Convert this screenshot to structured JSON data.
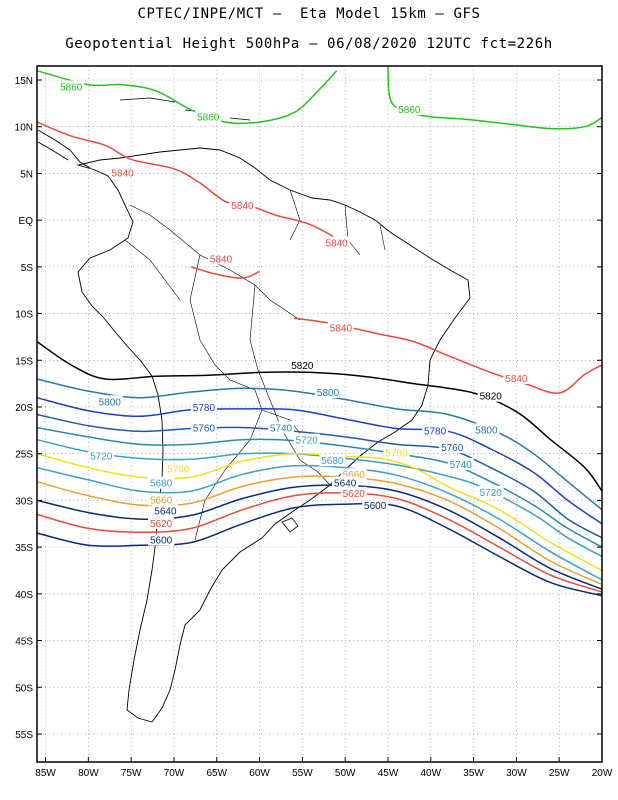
{
  "header": {
    "line1": "CPTEC/INPE/MCT –  Eta Model 15km – GFS",
    "line2": "Geopotential Height 500hPa – 06/08/2020 12UTC fct=226h"
  },
  "map": {
    "lon_range": [
      -86,
      -20
    ],
    "lat_range": [
      -58,
      16.5
    ],
    "lat_ticks": [
      "15N",
      "10N",
      "5N",
      "EQ",
      "5S",
      "10S",
      "15S",
      "20S",
      "25S",
      "30S",
      "35S",
      "40S",
      "45S",
      "50S",
      "55S"
    ],
    "lat_tick_values": [
      15,
      10,
      5,
      0,
      -5,
      -10,
      -15,
      -20,
      -25,
      -30,
      -35,
      -40,
      -45,
      -50,
      -55
    ],
    "lon_ticks": [
      "85W",
      "80W",
      "75W",
      "70W",
      "65W",
      "60W",
      "55W",
      "50W",
      "45W",
      "40W",
      "35W",
      "30W",
      "25W",
      "20W"
    ],
    "lon_tick_values": [
      -85,
      -80,
      -75,
      -70,
      -65,
      -60,
      -55,
      -50,
      -45,
      -40,
      -35,
      -30,
      -25,
      -20
    ],
    "grid": true
  },
  "contours": [
    {
      "level": "5860",
      "color": "#22c41c",
      "points": [
        [
          -86,
          16
        ],
        [
          -80,
          14.5
        ],
        [
          -76,
          14.5
        ],
        [
          -72,
          13.8
        ],
        [
          -68,
          11.8
        ],
        [
          -64,
          10.5
        ],
        [
          -60,
          10.5
        ],
        [
          -56,
          11.5
        ],
        [
          -53,
          14
        ],
        [
          -51,
          16
        ]
      ],
      "labels": [
        [
          -82,
          14.2
        ],
        [
          -66,
          11
        ]
      ]
    },
    {
      "level": "5860",
      "color": "#22c41c",
      "points": [
        [
          -45,
          16.5
        ],
        [
          -44.5,
          12.5
        ],
        [
          -41,
          11.2
        ],
        [
          -36,
          10.8
        ],
        [
          -31,
          10.3
        ],
        [
          -26,
          9.8
        ],
        [
          -22,
          10
        ],
        [
          -20,
          11
        ]
      ],
      "labels": [
        [
          -42.5,
          11.8
        ]
      ]
    },
    {
      "level": "5840",
      "color": "#e84a3c",
      "points": [
        [
          -86,
          10.5
        ],
        [
          -82,
          9
        ],
        [
          -78,
          8
        ],
        [
          -75,
          6.5
        ],
        [
          -70,
          5.5
        ],
        [
          -67,
          4
        ],
        [
          -64,
          2
        ],
        [
          -61,
          1.5
        ],
        [
          -58,
          0.5
        ],
        [
          -54,
          -0.5
        ],
        [
          -50,
          -2.5
        ]
      ],
      "labels": [
        [
          -76,
          5
        ],
        [
          -62,
          1.5
        ],
        [
          -51,
          -2.5
        ]
      ]
    },
    {
      "level": "5840",
      "color": "#e84a3c",
      "points": [
        [
          -68,
          -5
        ],
        [
          -65,
          -5.8
        ],
        [
          -62,
          -6.2
        ],
        [
          -60,
          -5.5
        ]
      ],
      "labels": [
        [
          -64.5,
          -4.2
        ]
      ]
    },
    {
      "level": "5840",
      "color": "#e84a3c",
      "points": [
        [
          -56,
          -10.5
        ],
        [
          -52,
          -11
        ],
        [
          -46,
          -12.2
        ],
        [
          -42,
          -13
        ],
        [
          -38,
          -14.5
        ],
        [
          -33,
          -16.3
        ],
        [
          -29,
          -17.5
        ],
        [
          -25,
          -18.5
        ],
        [
          -22,
          -16.5
        ],
        [
          -20,
          -15.5
        ]
      ],
      "labels": [
        [
          -50.5,
          -11.6
        ],
        [
          -30,
          -17
        ]
      ]
    },
    {
      "level": "5820",
      "color": "#000000",
      "points": [
        [
          -86,
          -13
        ],
        [
          -82,
          -15.5
        ],
        [
          -78,
          -17
        ],
        [
          -72,
          -16.7
        ],
        [
          -66,
          -16.6
        ],
        [
          -60,
          -16.3
        ],
        [
          -54,
          -16.3
        ],
        [
          -48,
          -16.7
        ],
        [
          -42,
          -17.5
        ],
        [
          -35,
          -18.5
        ],
        [
          -30,
          -20.5
        ],
        [
          -26,
          -23.5
        ],
        [
          -22,
          -26.5
        ],
        [
          -20,
          -29
        ]
      ],
      "labels": [
        [
          -55,
          -15.6
        ],
        [
          -33,
          -18.9
        ]
      ]
    },
    {
      "level": "5800",
      "color": "#2878a8",
      "points": [
        [
          -86,
          -17
        ],
        [
          -80,
          -18.3
        ],
        [
          -74,
          -19
        ],
        [
          -68,
          -18.4
        ],
        [
          -62,
          -18
        ],
        [
          -56,
          -18.3
        ],
        [
          -50,
          -19.2
        ],
        [
          -44,
          -20.2
        ],
        [
          -38,
          -20.8
        ],
        [
          -32,
          -22.8
        ],
        [
          -28,
          -25
        ],
        [
          -24,
          -28
        ],
        [
          -20,
          -31
        ]
      ],
      "labels": [
        [
          -77.5,
          -19.5
        ],
        [
          -52,
          -18.5
        ],
        [
          -33.5,
          -22.5
        ]
      ]
    },
    {
      "level": "5780",
      "color": "#1f3ec8",
      "points": [
        [
          -86,
          -19
        ],
        [
          -80,
          -20.4
        ],
        [
          -74,
          -21
        ],
        [
          -68,
          -20.3
        ],
        [
          -62,
          -20.2
        ],
        [
          -56,
          -20.3
        ],
        [
          -50,
          -21.3
        ],
        [
          -44,
          -22.3
        ],
        [
          -38,
          -22.6
        ],
        [
          -33,
          -24.5
        ],
        [
          -28,
          -27
        ],
        [
          -24,
          -30
        ],
        [
          -20,
          -32.5
        ]
      ],
      "labels": [
        [
          -66.5,
          -20.1
        ],
        [
          -39.5,
          -22.6
        ]
      ]
    },
    {
      "level": "5760",
      "color": "#1f58b0",
      "points": [
        [
          -86,
          -20.8
        ],
        [
          -80,
          -22
        ],
        [
          -74,
          -22.6
        ],
        [
          -68,
          -22.3
        ],
        [
          -62,
          -22.2
        ],
        [
          -56,
          -22.6
        ],
        [
          -50,
          -23.2
        ],
        [
          -44,
          -24
        ],
        [
          -38,
          -24.5
        ],
        [
          -33,
          -26.5
        ],
        [
          -28,
          -29
        ],
        [
          -24,
          -32
        ],
        [
          -20,
          -34
        ]
      ],
      "labels": [
        [
          -66.5,
          -22.3
        ],
        [
          -37.5,
          -24.4
        ]
      ]
    },
    {
      "level": "5740",
      "color": "#2a8ab0",
      "points": [
        [
          -86,
          -22.2
        ],
        [
          -80,
          -23.2
        ],
        [
          -74,
          -24
        ],
        [
          -68,
          -24
        ],
        [
          -62,
          -23.5
        ],
        [
          -56,
          -23.6
        ],
        [
          -50,
          -24.2
        ],
        [
          -44,
          -25
        ],
        [
          -38,
          -26
        ],
        [
          -33,
          -28
        ],
        [
          -28,
          -30.5
        ],
        [
          -24,
          -33
        ],
        [
          -20,
          -35
        ]
      ],
      "labels": [
        [
          -57.5,
          -22.3
        ],
        [
          -36.5,
          -26.2
        ]
      ]
    },
    {
      "level": "5720",
      "color": "#3aa0c8",
      "points": [
        [
          -86,
          -23.5
        ],
        [
          -80,
          -24.8
        ],
        [
          -74,
          -25.5
        ],
        [
          -68,
          -25.6
        ],
        [
          -62,
          -25
        ],
        [
          -56,
          -25
        ],
        [
          -50,
          -25.5
        ],
        [
          -44,
          -26.2
        ],
        [
          -38,
          -27.4
        ],
        [
          -34,
          -28.6
        ],
        [
          -28,
          -31.5
        ],
        [
          -24,
          -34
        ],
        [
          -20,
          -36
        ]
      ],
      "labels": [
        [
          -78.5,
          -25.3
        ],
        [
          -54.5,
          -23.6
        ],
        [
          -33,
          -29.2
        ]
      ]
    },
    {
      "level": "5700",
      "color": "#f0e020",
      "points": [
        [
          -86,
          -25
        ],
        [
          -80,
          -26.5
        ],
        [
          -74,
          -27.5
        ],
        [
          -68,
          -27.5
        ],
        [
          -62,
          -25.8
        ],
        [
          -56,
          -25
        ],
        [
          -50,
          -25.3
        ],
        [
          -46,
          -25.5
        ],
        [
          -42,
          -26.5
        ],
        [
          -38,
          -28.5
        ],
        [
          -32,
          -31
        ],
        [
          -26,
          -34.5
        ],
        [
          -20,
          -37.5
        ]
      ],
      "labels": [
        [
          -69.5,
          -26.7
        ],
        [
          -44,
          -25
        ]
      ]
    },
    {
      "level": "5680",
      "color": "#3aa0c8",
      "points": [
        [
          -86,
          -26.5
        ],
        [
          -80,
          -27.8
        ],
        [
          -74,
          -29
        ],
        [
          -68,
          -29
        ],
        [
          -62,
          -27.2
        ],
        [
          -56,
          -26.3
        ],
        [
          -50,
          -26.5
        ],
        [
          -44,
          -27.3
        ],
        [
          -38,
          -29.2
        ],
        [
          -32,
          -32
        ],
        [
          -26,
          -35.5
        ],
        [
          -20,
          -38.5
        ]
      ],
      "labels": [
        [
          -71.5,
          -28.2
        ],
        [
          -51.5,
          -25.8
        ]
      ]
    },
    {
      "level": "5660",
      "color": "#e8a030",
      "points": [
        [
          -86,
          -28
        ],
        [
          -80,
          -29.5
        ],
        [
          -74,
          -30.5
        ],
        [
          -68,
          -30.3
        ],
        [
          -62,
          -28.5
        ],
        [
          -56,
          -27.5
        ],
        [
          -50,
          -27.5
        ],
        [
          -44,
          -28.2
        ],
        [
          -38,
          -30
        ],
        [
          -32,
          -33
        ],
        [
          -26,
          -36.5
        ],
        [
          -20,
          -39
        ]
      ],
      "labels": [
        [
          -71.5,
          -30
        ],
        [
          -49,
          -27.3
        ]
      ]
    },
    {
      "level": "5640",
      "color": "#0a2a7a",
      "points": [
        [
          -86,
          -30
        ],
        [
          -80,
          -31.3
        ],
        [
          -74,
          -32
        ],
        [
          -68,
          -31.6
        ],
        [
          -62,
          -29.8
        ],
        [
          -56,
          -28.6
        ],
        [
          -50,
          -28.4
        ],
        [
          -44,
          -29
        ],
        [
          -38,
          -31
        ],
        [
          -32,
          -34
        ],
        [
          -26,
          -37.3
        ],
        [
          -20,
          -39.5
        ]
      ],
      "labels": [
        [
          -71,
          -31.2
        ],
        [
          -50,
          -28.2
        ]
      ]
    },
    {
      "level": "5620",
      "color": "#e84a3c",
      "points": [
        [
          -86,
          -31.5
        ],
        [
          -80,
          -33
        ],
        [
          -74,
          -33.4
        ],
        [
          -68,
          -33
        ],
        [
          -62,
          -31
        ],
        [
          -56,
          -29.5
        ],
        [
          -50,
          -29.2
        ],
        [
          -44,
          -29.8
        ],
        [
          -38,
          -32
        ],
        [
          -32,
          -35
        ],
        [
          -26,
          -38
        ],
        [
          -20,
          -39.8
        ]
      ],
      "labels": [
        [
          -71.5,
          -32.5
        ],
        [
          -49,
          -29.3
        ]
      ]
    },
    {
      "level": "5600",
      "color": "#0a2a7a",
      "points": [
        [
          -86,
          -33.5
        ],
        [
          -80,
          -34.8
        ],
        [
          -74,
          -34.8
        ],
        [
          -68,
          -34.5
        ],
        [
          -62,
          -32.5
        ],
        [
          -56,
          -30.8
        ],
        [
          -50,
          -30.4
        ],
        [
          -44,
          -30.6
        ],
        [
          -38,
          -33
        ],
        [
          -32,
          -36
        ],
        [
          -26,
          -38.8
        ],
        [
          -20,
          -40.2
        ]
      ],
      "labels": [
        [
          -71.5,
          -34.3
        ],
        [
          -46.5,
          -30.6
        ]
      ]
    }
  ]
}
